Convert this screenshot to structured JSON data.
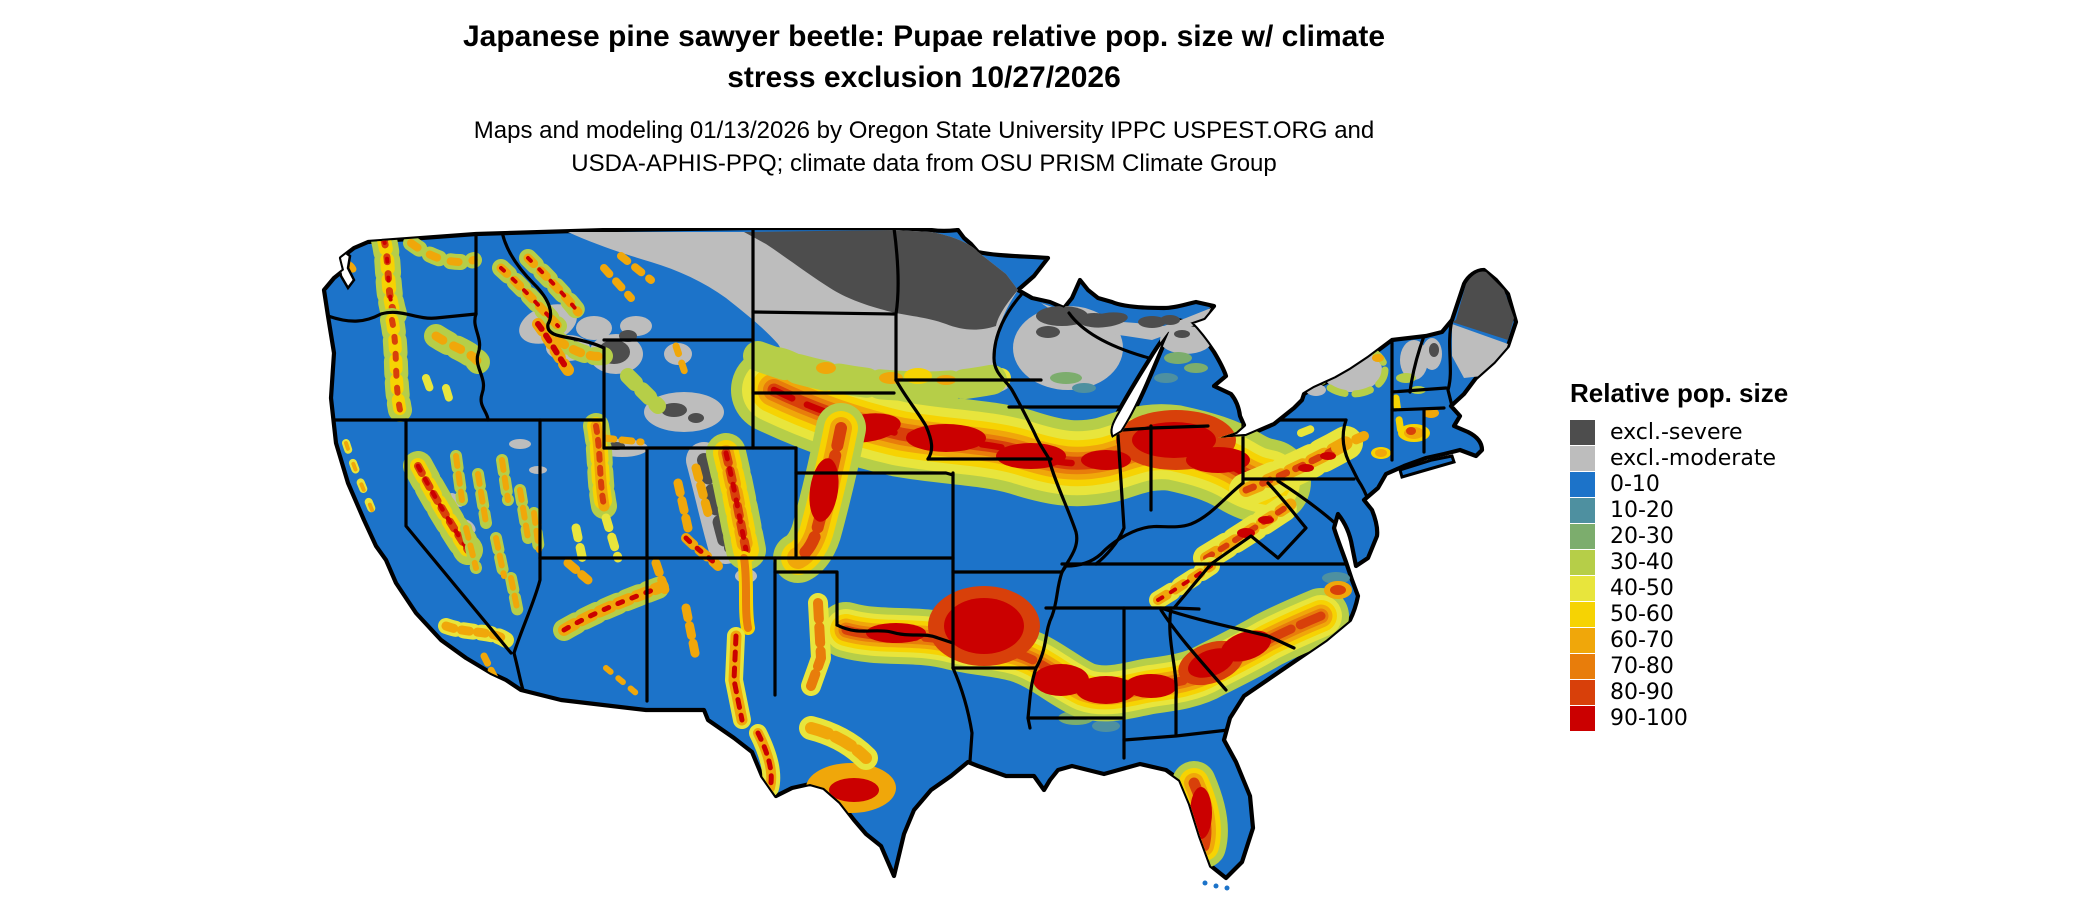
{
  "page": {
    "background": "#FFFFFF"
  },
  "header": {
    "title_line1": "Japanese pine sawyer beetle: Pupae relative pop. size w/ climate",
    "title_line2": "stress exclusion 10/27/2026",
    "subtitle_line1": "Maps and modeling 01/13/2026 by Oregon State University IPPC USPEST.ORG and",
    "subtitle_line2": "USDA-APHIS-PPQ; climate data from OSU PRISM Climate Group"
  },
  "map": {
    "name": "Contiguous United States raster map of relative population size",
    "border_color": "#000000",
    "background_color": "#FFFFFF",
    "dominant_class": "0-10"
  },
  "legend": {
    "title": "Relative pop. size",
    "items": [
      {
        "key": "severe",
        "label": "excl.-severe",
        "color": "#4D4D4D"
      },
      {
        "key": "moderate",
        "label": "excl.-moderate",
        "color": "#BDBDBD"
      },
      {
        "key": "v0",
        "label": "0-10",
        "color": "#1C73C9"
      },
      {
        "key": "v10",
        "label": "10-20",
        "color": "#4E90A0"
      },
      {
        "key": "v20",
        "label": "20-30",
        "color": "#7CAD6D"
      },
      {
        "key": "v30",
        "label": "30-40",
        "color": "#B6CE48"
      },
      {
        "key": "v40",
        "label": "40-50",
        "color": "#E8E53C"
      },
      {
        "key": "v50",
        "label": "50-60",
        "color": "#F6D303"
      },
      {
        "key": "v60",
        "label": "60-70",
        "color": "#F0A70A"
      },
      {
        "key": "v70",
        "label": "70-80",
        "color": "#E87D0B"
      },
      {
        "key": "v80",
        "label": "80-90",
        "color": "#D8400A"
      },
      {
        "key": "v90",
        "label": "90-100",
        "color": "#CB0000"
      }
    ]
  }
}
